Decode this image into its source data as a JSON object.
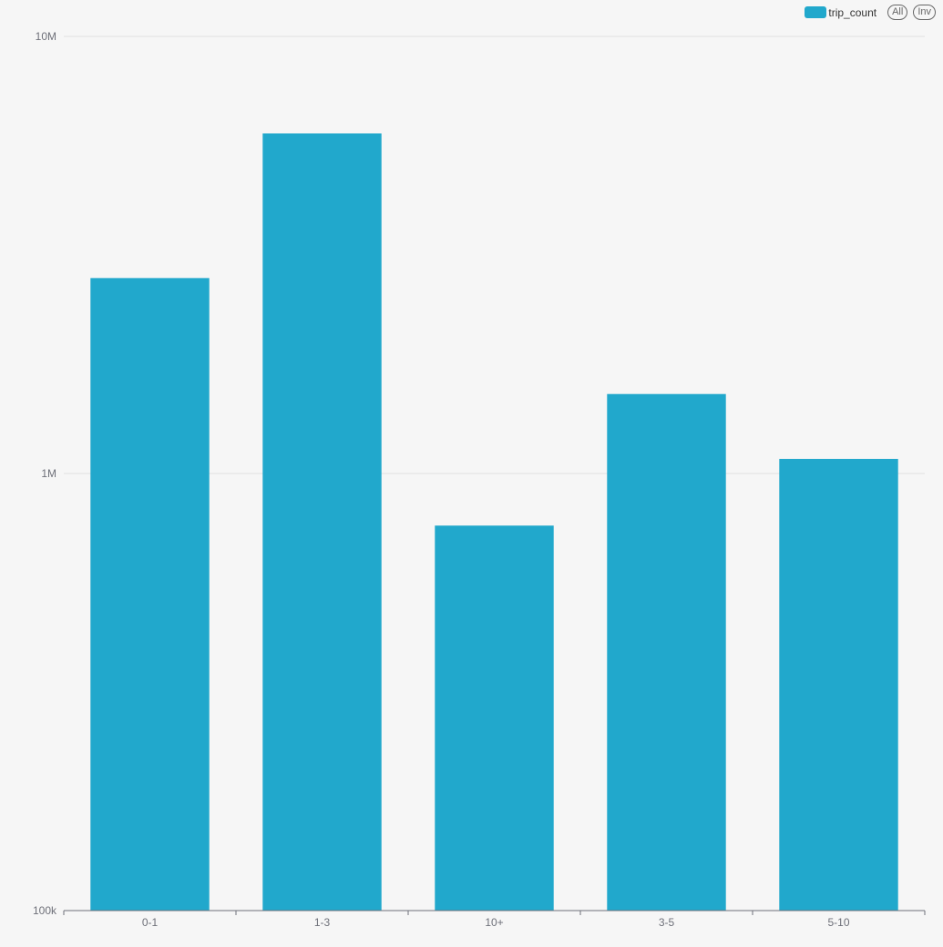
{
  "colors": {
    "bar": "#21a8cc",
    "grid": "#e0e0e0",
    "axis": "#6e7079",
    "background": "#f6f6f6"
  },
  "legend": {
    "items": [
      {
        "label": "trip_count",
        "color": "#21a8cc"
      }
    ],
    "select_all_label": "All",
    "inverse_label": "Inv"
  },
  "chart_data": {
    "type": "bar",
    "categories": [
      "0-1",
      "1-3",
      "10+",
      "3-5",
      "5-10"
    ],
    "series": [
      {
        "name": "trip_count",
        "values": [
          2800000,
          6000000,
          760000,
          1520000,
          1080000
        ]
      }
    ],
    "yscale": "log",
    "ylim": [
      100000,
      10000000
    ],
    "yticks": [
      {
        "value": 100000,
        "label": "100k"
      },
      {
        "value": 1000000,
        "label": "1M"
      },
      {
        "value": 10000000,
        "label": "10M"
      }
    ],
    "grid": true,
    "legend_position": "top-right",
    "title": "",
    "xlabel": "",
    "ylabel": ""
  }
}
